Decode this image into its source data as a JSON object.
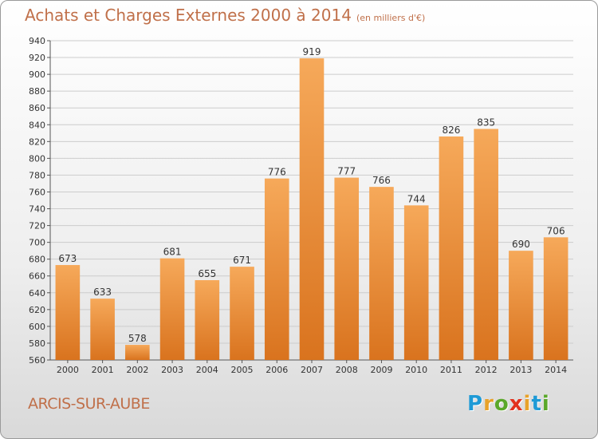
{
  "header": {
    "title": "Achats et Charges Externes 2000 à 2014",
    "unit": "(en milliers d'€)"
  },
  "footer": {
    "city": "ARCIS-SUR-AUBE",
    "logo": [
      "P",
      "r",
      "o",
      "x",
      "i",
      "t",
      "i"
    ]
  },
  "colors": {
    "bar_top": "#f6a95a",
    "bar_bottom": "#d9731e",
    "title": "#c0704a",
    "grid": "#cccccc"
  },
  "chart_data": {
    "type": "bar",
    "title": "Achats et Charges Externes 2000 à 2014",
    "xlabel": "",
    "ylabel": "",
    "categories": [
      "2000",
      "2001",
      "2002",
      "2003",
      "2004",
      "2005",
      "2006",
      "2007",
      "2008",
      "2009",
      "2010",
      "2011",
      "2012",
      "2013",
      "2014"
    ],
    "values": [
      673,
      633,
      578,
      681,
      655,
      671,
      776,
      919,
      777,
      766,
      744,
      826,
      835,
      690,
      706
    ],
    "ylim": [
      560,
      940
    ],
    "yticks": [
      560,
      580,
      600,
      620,
      640,
      660,
      680,
      700,
      720,
      740,
      760,
      780,
      800,
      820,
      840,
      860,
      880,
      900,
      920,
      940
    ],
    "grid": true,
    "legend": "none"
  }
}
